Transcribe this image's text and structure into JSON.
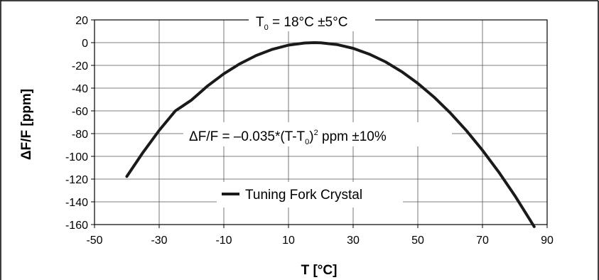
{
  "chart_data": {
    "type": "line",
    "xlabel": "T [°C]",
    "ylabel": "ΔF/F [ppm]",
    "xlim": [
      -50,
      90
    ],
    "ylim": [
      -160,
      20
    ],
    "x_ticks": [
      "-50",
      "-30",
      "-10",
      "10",
      "30",
      "50",
      "70",
      "90"
    ],
    "y_ticks": [
      "20",
      "0",
      "-20",
      "-40",
      "-60",
      "-80",
      "-100",
      "-120",
      "-140",
      "-160"
    ],
    "grid": true,
    "legend_position": "bottom-center",
    "series": [
      {
        "name": "Tuning Fork Crystal",
        "color": "#1a1a1a",
        "x": [
          -40,
          -35,
          -30,
          -25,
          -20,
          -15,
          -10,
          -5,
          0,
          5,
          10,
          15,
          18,
          20,
          25,
          30,
          35,
          40,
          45,
          50,
          55,
          60,
          65,
          70,
          75,
          80,
          86
        ],
        "y": [
          -117.7,
          -96.5,
          -77.2,
          -60.0,
          -50.5,
          -38.0,
          -27.4,
          -18.5,
          -11.3,
          -5.9,
          -2.2,
          -0.3,
          0.0,
          -0.1,
          -1.7,
          -5.0,
          -10.1,
          -16.9,
          -25.5,
          -35.8,
          -47.9,
          -61.7,
          -77.3,
          -94.6,
          -113.7,
          -134.5,
          -161.8
        ]
      }
    ],
    "annotations": {
      "t0_prefix": "T",
      "t0_sub": "0",
      "t0_value": " = 18°C ±5°C",
      "formula_part1": "ΔF/F = –0.035*(T-T",
      "formula_sub": "0",
      "formula_part2": ")",
      "formula_sup": "2",
      "formula_part3": " ppm ±10%"
    }
  }
}
